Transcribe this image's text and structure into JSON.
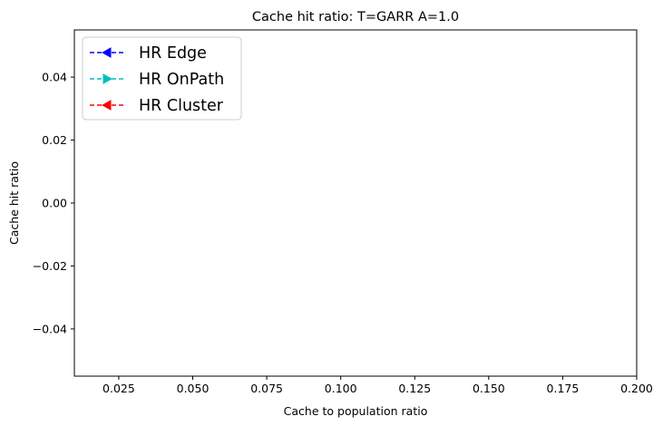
{
  "chart_data": {
    "type": "line",
    "title": "Cache hit ratio: T=GARR A=1.0",
    "xlabel": "Cache to population ratio",
    "ylabel": "Cache hit ratio",
    "xlim": [
      0.01,
      0.2
    ],
    "ylim": [
      -0.055,
      0.055
    ],
    "x_ticks": [
      0.025,
      0.05,
      0.075,
      0.1,
      0.125,
      0.15,
      0.175,
      0.2
    ],
    "x_tick_labels": [
      "0.025",
      "0.050",
      "0.075",
      "0.100",
      "0.125",
      "0.150",
      "0.175",
      "0.200"
    ],
    "y_ticks": [
      0.04,
      0.02,
      0.0,
      -0.02,
      -0.04
    ],
    "y_tick_labels": [
      "0.04",
      "0.02",
      "0.00",
      "−0.02",
      "−0.04"
    ],
    "grid": false,
    "legend_position": "top-left",
    "series": [
      {
        "name": "HR Edge",
        "color": "#0000ff",
        "marker": "triangle-left",
        "linestyle": "dashed",
        "x": [],
        "y": []
      },
      {
        "name": "HR OnPath",
        "color": "#00bfbf",
        "marker": "triangle-right",
        "linestyle": "dashed",
        "x": [],
        "y": []
      },
      {
        "name": "HR Cluster",
        "color": "#ff0000",
        "marker": "triangle-left",
        "linestyle": "dashed",
        "x": [],
        "y": []
      }
    ]
  }
}
